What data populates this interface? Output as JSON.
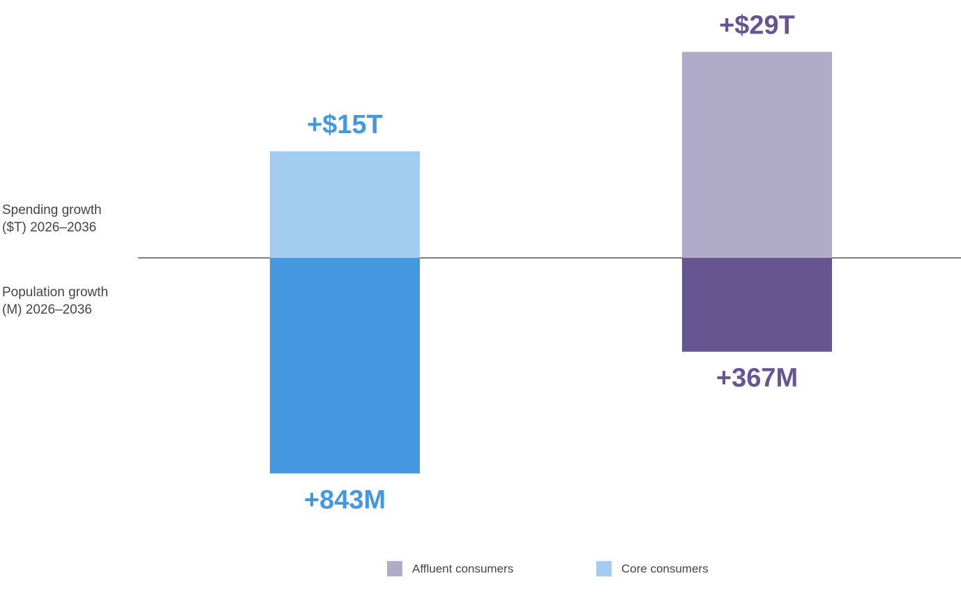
{
  "chart_data": [
    {
      "type": "bar",
      "direction": "up",
      "label": [
        "Spending growth",
        "($T) 2026–2036"
      ],
      "ylim": [
        0,
        36
      ],
      "series": [
        {
          "name": "Core consumers",
          "color": "#a3cdf0",
          "label_color": "#4597e0",
          "values": [
            15
          ],
          "value_labels": [
            "+$15T"
          ]
        },
        {
          "name": "Affluent consumers",
          "color": "#b1abca",
          "label_color": "#665591",
          "values": [
            29
          ],
          "value_labels": [
            "+$29T"
          ]
        }
      ]
    },
    {
      "type": "bar",
      "direction": "down",
      "label": [
        "Population growth",
        "(M) 2026–2036"
      ],
      "ylim": [
        0,
        1330
      ],
      "series": [
        {
          "color": "#4597e0",
          "label_color": "#4597e0",
          "values": [
            843
          ],
          "value_labels": [
            "+843M"
          ]
        },
        {
          "color": "#665591",
          "label_color": "#665591",
          "values": [
            367
          ],
          "value_labels": [
            "+367M"
          ]
        }
      ]
    }
  ]
}
